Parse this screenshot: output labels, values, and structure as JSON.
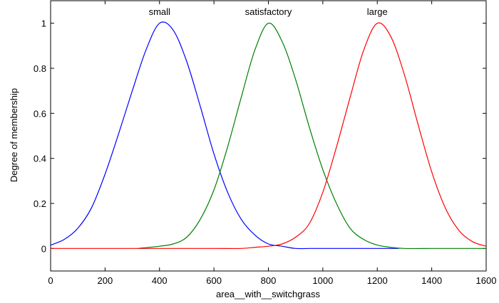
{
  "chart_data": {
    "type": "line",
    "title": "",
    "xlabel": "area__with__switchgrass",
    "ylabel": "Degree of membership",
    "xlim": [
      0,
      1600
    ],
    "ylim": [
      -0.1,
      1.1
    ],
    "x_ticks": [
      0,
      200,
      400,
      600,
      800,
      1000,
      1200,
      1400,
      1600
    ],
    "y_ticks": [
      0,
      0.2,
      0.4,
      0.6,
      0.8,
      1
    ],
    "grid": false,
    "series": [
      {
        "name": "small",
        "color": "#0000ff",
        "x": [
          0,
          50,
          100,
          150,
          200,
          250,
          300,
          350,
          400,
          450,
          500,
          550,
          600,
          650,
          700,
          750,
          800,
          850,
          900,
          950,
          1000,
          1050,
          1100,
          1150,
          1200,
          1250,
          1280
        ],
        "y": [
          0.015,
          0.04,
          0.09,
          0.18,
          0.33,
          0.51,
          0.7,
          0.88,
          1.0,
          0.97,
          0.83,
          0.63,
          0.42,
          0.25,
          0.13,
          0.06,
          0.02,
          0.01,
          0.0,
          0.0,
          0.0,
          0.0,
          0.0,
          0.0,
          0.0,
          0.0,
          0.0
        ]
      },
      {
        "name": "satisfactory",
        "color": "#008000",
        "x": [
          320,
          400,
          450,
          500,
          550,
          600,
          650,
          700,
          750,
          800,
          850,
          900,
          950,
          1000,
          1050,
          1100,
          1150,
          1200,
          1250,
          1300,
          1400,
          1500,
          1600
        ],
        "y": [
          0.0,
          0.01,
          0.02,
          0.05,
          0.13,
          0.26,
          0.45,
          0.67,
          0.88,
          1.0,
          0.92,
          0.75,
          0.54,
          0.35,
          0.2,
          0.09,
          0.04,
          0.015,
          0.005,
          0.0,
          0.0,
          0.0,
          0.0
        ]
      },
      {
        "name": "large",
        "color": "#ff0000",
        "x": [
          0,
          200,
          400,
          600,
          700,
          750,
          800,
          850,
          900,
          950,
          1000,
          1050,
          1100,
          1150,
          1200,
          1250,
          1300,
          1350,
          1400,
          1450,
          1500,
          1550,
          1600
        ],
        "y": [
          0.0,
          0.0,
          0.0,
          0.0,
          0.0,
          0.005,
          0.01,
          0.02,
          0.05,
          0.11,
          0.25,
          0.45,
          0.67,
          0.88,
          1.0,
          0.94,
          0.77,
          0.55,
          0.34,
          0.18,
          0.08,
          0.03,
          0.01
        ]
      }
    ],
    "annotations": [
      {
        "text": "small",
        "x": 400,
        "y": 1.05
      },
      {
        "text": "satisfactory",
        "x": 800,
        "y": 1.05
      },
      {
        "text": "large",
        "x": 1200,
        "y": 1.05
      }
    ]
  }
}
